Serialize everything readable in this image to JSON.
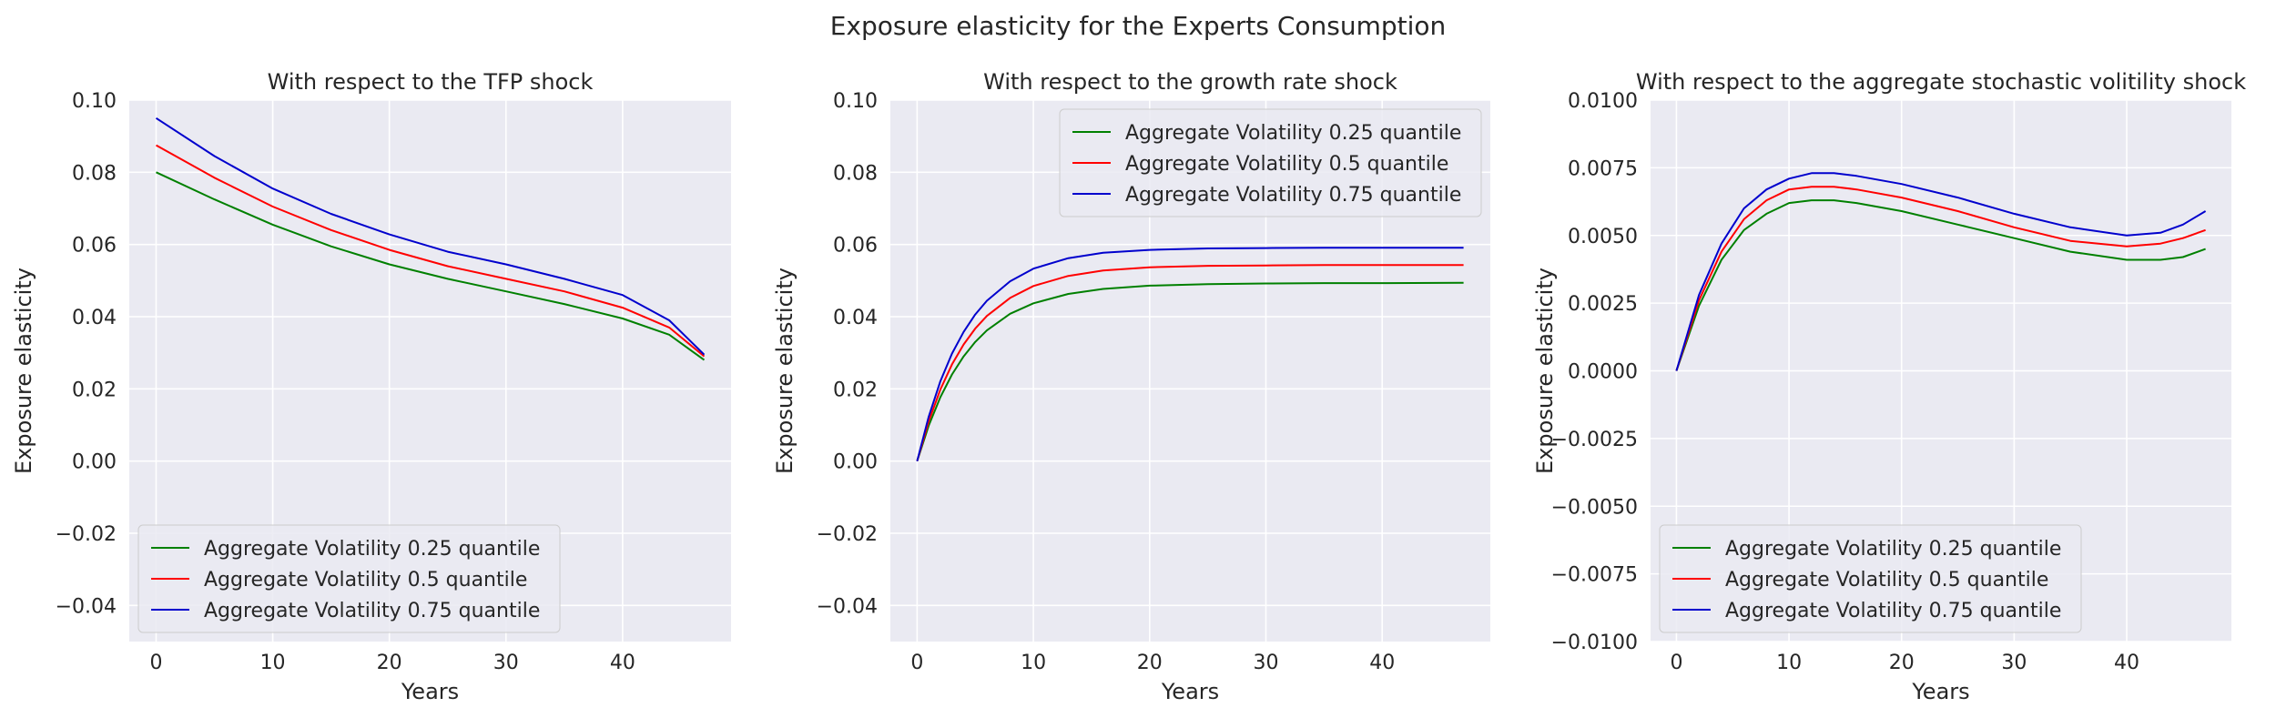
{
  "figure": {
    "suptitle": "Exposure elasticity for the Experts Consumption"
  },
  "colors": {
    "plot_bg": "#eaeaf2",
    "grid": "#ffffff",
    "text": "#262626",
    "series": [
      "#008000",
      "#ff0000",
      "#0000cd"
    ]
  },
  "chart_data": [
    {
      "type": "line",
      "title": "With respect to the TFP shock",
      "xlabel": "Years",
      "ylabel": "Exposure elasticity",
      "xlim": [
        -2.3,
        49.3
      ],
      "ylim": [
        -0.05,
        0.1
      ],
      "xticks": [
        0,
        10,
        20,
        30,
        40
      ],
      "xtick_labels": [
        "0",
        "10",
        "20",
        "30",
        "40"
      ],
      "yticks": [
        -0.04,
        -0.02,
        0.0,
        0.02,
        0.04,
        0.06,
        0.08,
        0.1
      ],
      "ytick_labels": [
        "−0.04",
        "−0.02",
        "0.00",
        "0.02",
        "0.04",
        "0.06",
        "0.08",
        "0.10"
      ],
      "grid": true,
      "legend_loc": "lower left",
      "x": [
        0,
        5,
        10,
        15,
        20,
        25,
        30,
        35,
        40,
        44,
        47
      ],
      "series": [
        {
          "name": "Aggregate Volatility 0.25 quantile",
          "values": [
            0.08,
            0.0725,
            0.0655,
            0.0595,
            0.0545,
            0.0505,
            0.047,
            0.0435,
            0.0395,
            0.035,
            0.028
          ]
        },
        {
          "name": "Aggregate Volatility 0.5 quantile",
          "values": [
            0.0875,
            0.0785,
            0.0705,
            0.064,
            0.0585,
            0.054,
            0.0505,
            0.047,
            0.0425,
            0.037,
            0.029
          ]
        },
        {
          "name": "Aggregate Volatility 0.75 quantile",
          "values": [
            0.095,
            0.0845,
            0.0755,
            0.0685,
            0.0628,
            0.058,
            0.0545,
            0.0505,
            0.046,
            0.039,
            0.0295
          ]
        }
      ]
    },
    {
      "type": "line",
      "title": "With respect to the growth rate shock",
      "xlabel": "Years",
      "ylabel": "Exposure elasticity",
      "xlim": [
        -2.3,
        49.3
      ],
      "ylim": [
        -0.05,
        0.1
      ],
      "xticks": [
        0,
        10,
        20,
        30,
        40
      ],
      "xtick_labels": [
        "0",
        "10",
        "20",
        "30",
        "40"
      ],
      "yticks": [
        -0.04,
        -0.02,
        0.0,
        0.02,
        0.04,
        0.06,
        0.08,
        0.1
      ],
      "ytick_labels": [
        "−0.04",
        "−0.02",
        "0.00",
        "0.02",
        "0.04",
        "0.06",
        "0.08",
        "0.10"
      ],
      "grid": true,
      "legend_loc": "upper right",
      "x": [
        0,
        1,
        2,
        3,
        4,
        5,
        6,
        8,
        10,
        13,
        16,
        20,
        25,
        30,
        35,
        40,
        47
      ],
      "series": [
        {
          "name": "Aggregate Volatility 0.25 quantile",
          "values": [
            0.0,
            0.0098,
            0.0177,
            0.024,
            0.029,
            0.033,
            0.0362,
            0.0408,
            0.0437,
            0.0463,
            0.0477,
            0.0486,
            0.049,
            0.0492,
            0.0493,
            0.0493,
            0.0494
          ]
        },
        {
          "name": "Aggregate Volatility 0.5 quantile",
          "values": [
            0.0,
            0.011,
            0.0198,
            0.0268,
            0.0323,
            0.0367,
            0.0402,
            0.0452,
            0.0485,
            0.0513,
            0.0528,
            0.0537,
            0.0541,
            0.0542,
            0.0543,
            0.0543,
            0.0543
          ]
        },
        {
          "name": "Aggregate Volatility 0.75 quantile",
          "values": [
            0.0,
            0.0123,
            0.0221,
            0.0298,
            0.0358,
            0.0406,
            0.0444,
            0.0498,
            0.0533,
            0.0562,
            0.0577,
            0.0585,
            0.0589,
            0.059,
            0.0591,
            0.0591,
            0.0591
          ]
        }
      ]
    },
    {
      "type": "line",
      "title": "With respect to the aggregate stochastic volitility shock",
      "xlabel": "Years",
      "ylabel": "Exposure elasticity",
      "xlim": [
        -2.3,
        49.3
      ],
      "ylim": [
        -0.01,
        0.01
      ],
      "xticks": [
        0,
        10,
        20,
        30,
        40
      ],
      "xtick_labels": [
        "0",
        "10",
        "20",
        "30",
        "40"
      ],
      "yticks": [
        -0.01,
        -0.0075,
        -0.005,
        -0.0025,
        0.0,
        0.0025,
        0.005,
        0.0075,
        0.01
      ],
      "ytick_labels": [
        "−0.0100",
        "−0.0075",
        "−0.0050",
        "−0.0025",
        "0.0000",
        "0.0025",
        "0.0050",
        "0.0075",
        "0.0100"
      ],
      "grid": true,
      "legend_loc": "lower left",
      "x": [
        0,
        2,
        4,
        6,
        8,
        10,
        12,
        14,
        16,
        20,
        25,
        30,
        35,
        40,
        43,
        45,
        47
      ],
      "series": [
        {
          "name": "Aggregate Volatility 0.25 quantile",
          "values": [
            0.0,
            0.0024,
            0.0041,
            0.0052,
            0.0058,
            0.0062,
            0.0063,
            0.0063,
            0.0062,
            0.0059,
            0.0054,
            0.0049,
            0.0044,
            0.0041,
            0.0041,
            0.0042,
            0.0045
          ]
        },
        {
          "name": "Aggregate Volatility 0.5 quantile",
          "values": [
            0.0,
            0.0026,
            0.0044,
            0.0056,
            0.0063,
            0.0067,
            0.0068,
            0.0068,
            0.0067,
            0.0064,
            0.0059,
            0.0053,
            0.0048,
            0.0046,
            0.0047,
            0.0049,
            0.0052
          ]
        },
        {
          "name": "Aggregate Volatility 0.75 quantile",
          "values": [
            0.0,
            0.0028,
            0.0047,
            0.006,
            0.0067,
            0.0071,
            0.0073,
            0.0073,
            0.0072,
            0.0069,
            0.0064,
            0.0058,
            0.0053,
            0.005,
            0.0051,
            0.0054,
            0.0059
          ]
        }
      ]
    }
  ]
}
